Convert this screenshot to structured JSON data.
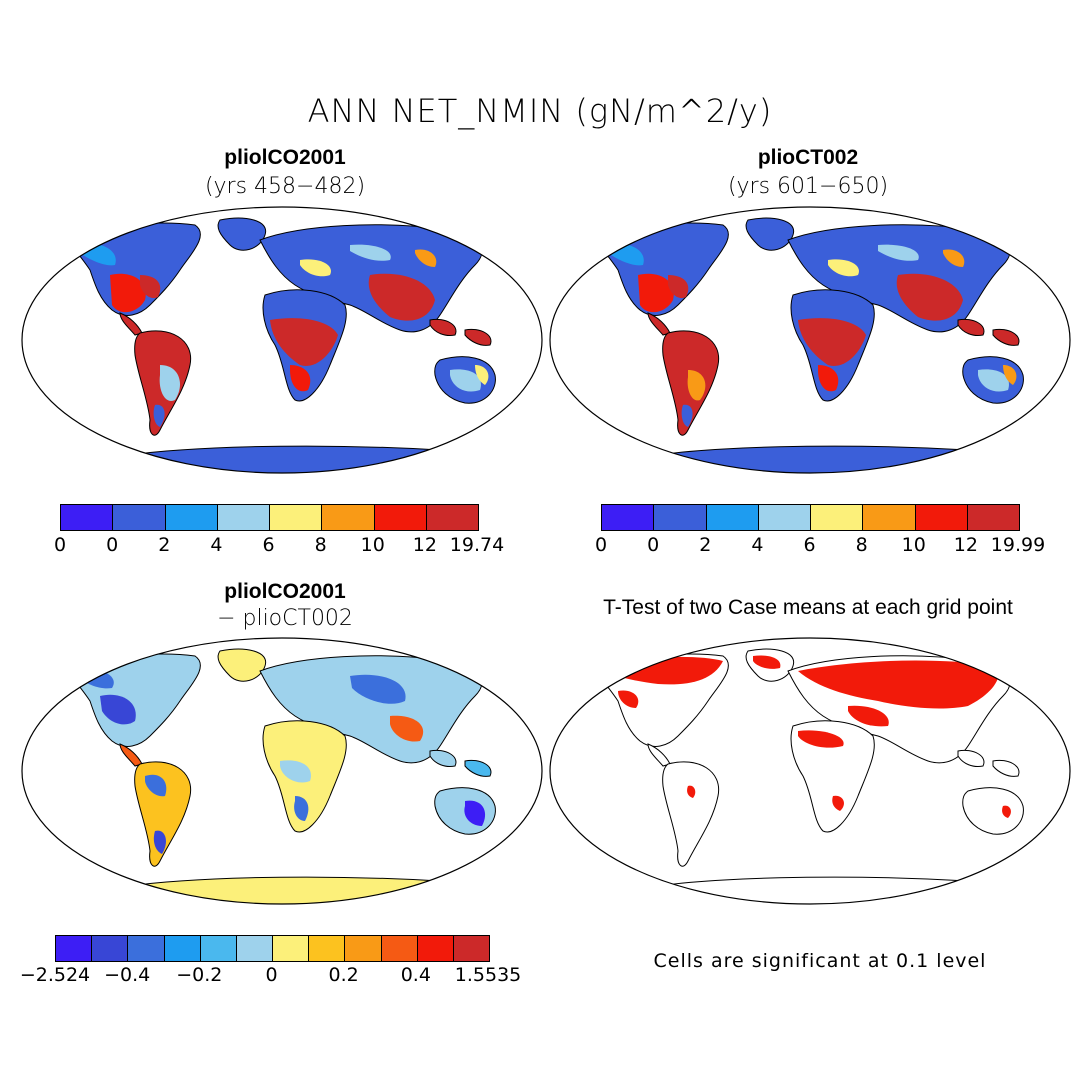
{
  "figure": {
    "title": "ANN NET_NMIN (gN/m^2/y)",
    "note": "Cells are significant at 0.1 level"
  },
  "panels": [
    {
      "title": "pliolCO2001",
      "subtitle": "(yrs 458−482)",
      "colorbar": {
        "colors": [
          "#3d1ef5",
          "#3b5fd9",
          "#1e9cf0",
          "#9ed2ec",
          "#fcf07a",
          "#f99a16",
          "#f21a0a",
          "#cc2929"
        ],
        "labels": [
          "0",
          "0",
          "2",
          "4",
          "6",
          "8",
          "10",
          "12",
          "19.74"
        ]
      }
    },
    {
      "title": "plioCT002",
      "subtitle": "(yrs 601−650)",
      "colorbar": {
        "colors": [
          "#3d1ef5",
          "#3b5fd9",
          "#1e9cf0",
          "#9ed2ec",
          "#fcf07a",
          "#f99a16",
          "#f21a0a",
          "#cc2929"
        ],
        "labels": [
          "0",
          "0",
          "2",
          "4",
          "6",
          "8",
          "10",
          "12",
          "19.99"
        ]
      }
    },
    {
      "title": "pliolCO2001",
      "subtitle": "− plioCT002",
      "colorbar": {
        "colors": [
          "#3d1ef5",
          "#3846d6",
          "#3b6fdc",
          "#1e9cf0",
          "#4ab8ee",
          "#9ed2ec",
          "#fcf07a",
          "#fcc21f",
          "#f99a16",
          "#f55a14",
          "#f21a0a",
          "#cc2929"
        ],
        "labels": [
          "−2.524",
          "−0.4",
          "−0.2",
          "0",
          "0.2",
          "0.4",
          "1.5535"
        ]
      }
    },
    {
      "title": "T-Test of two Case means at each grid point"
    }
  ]
}
